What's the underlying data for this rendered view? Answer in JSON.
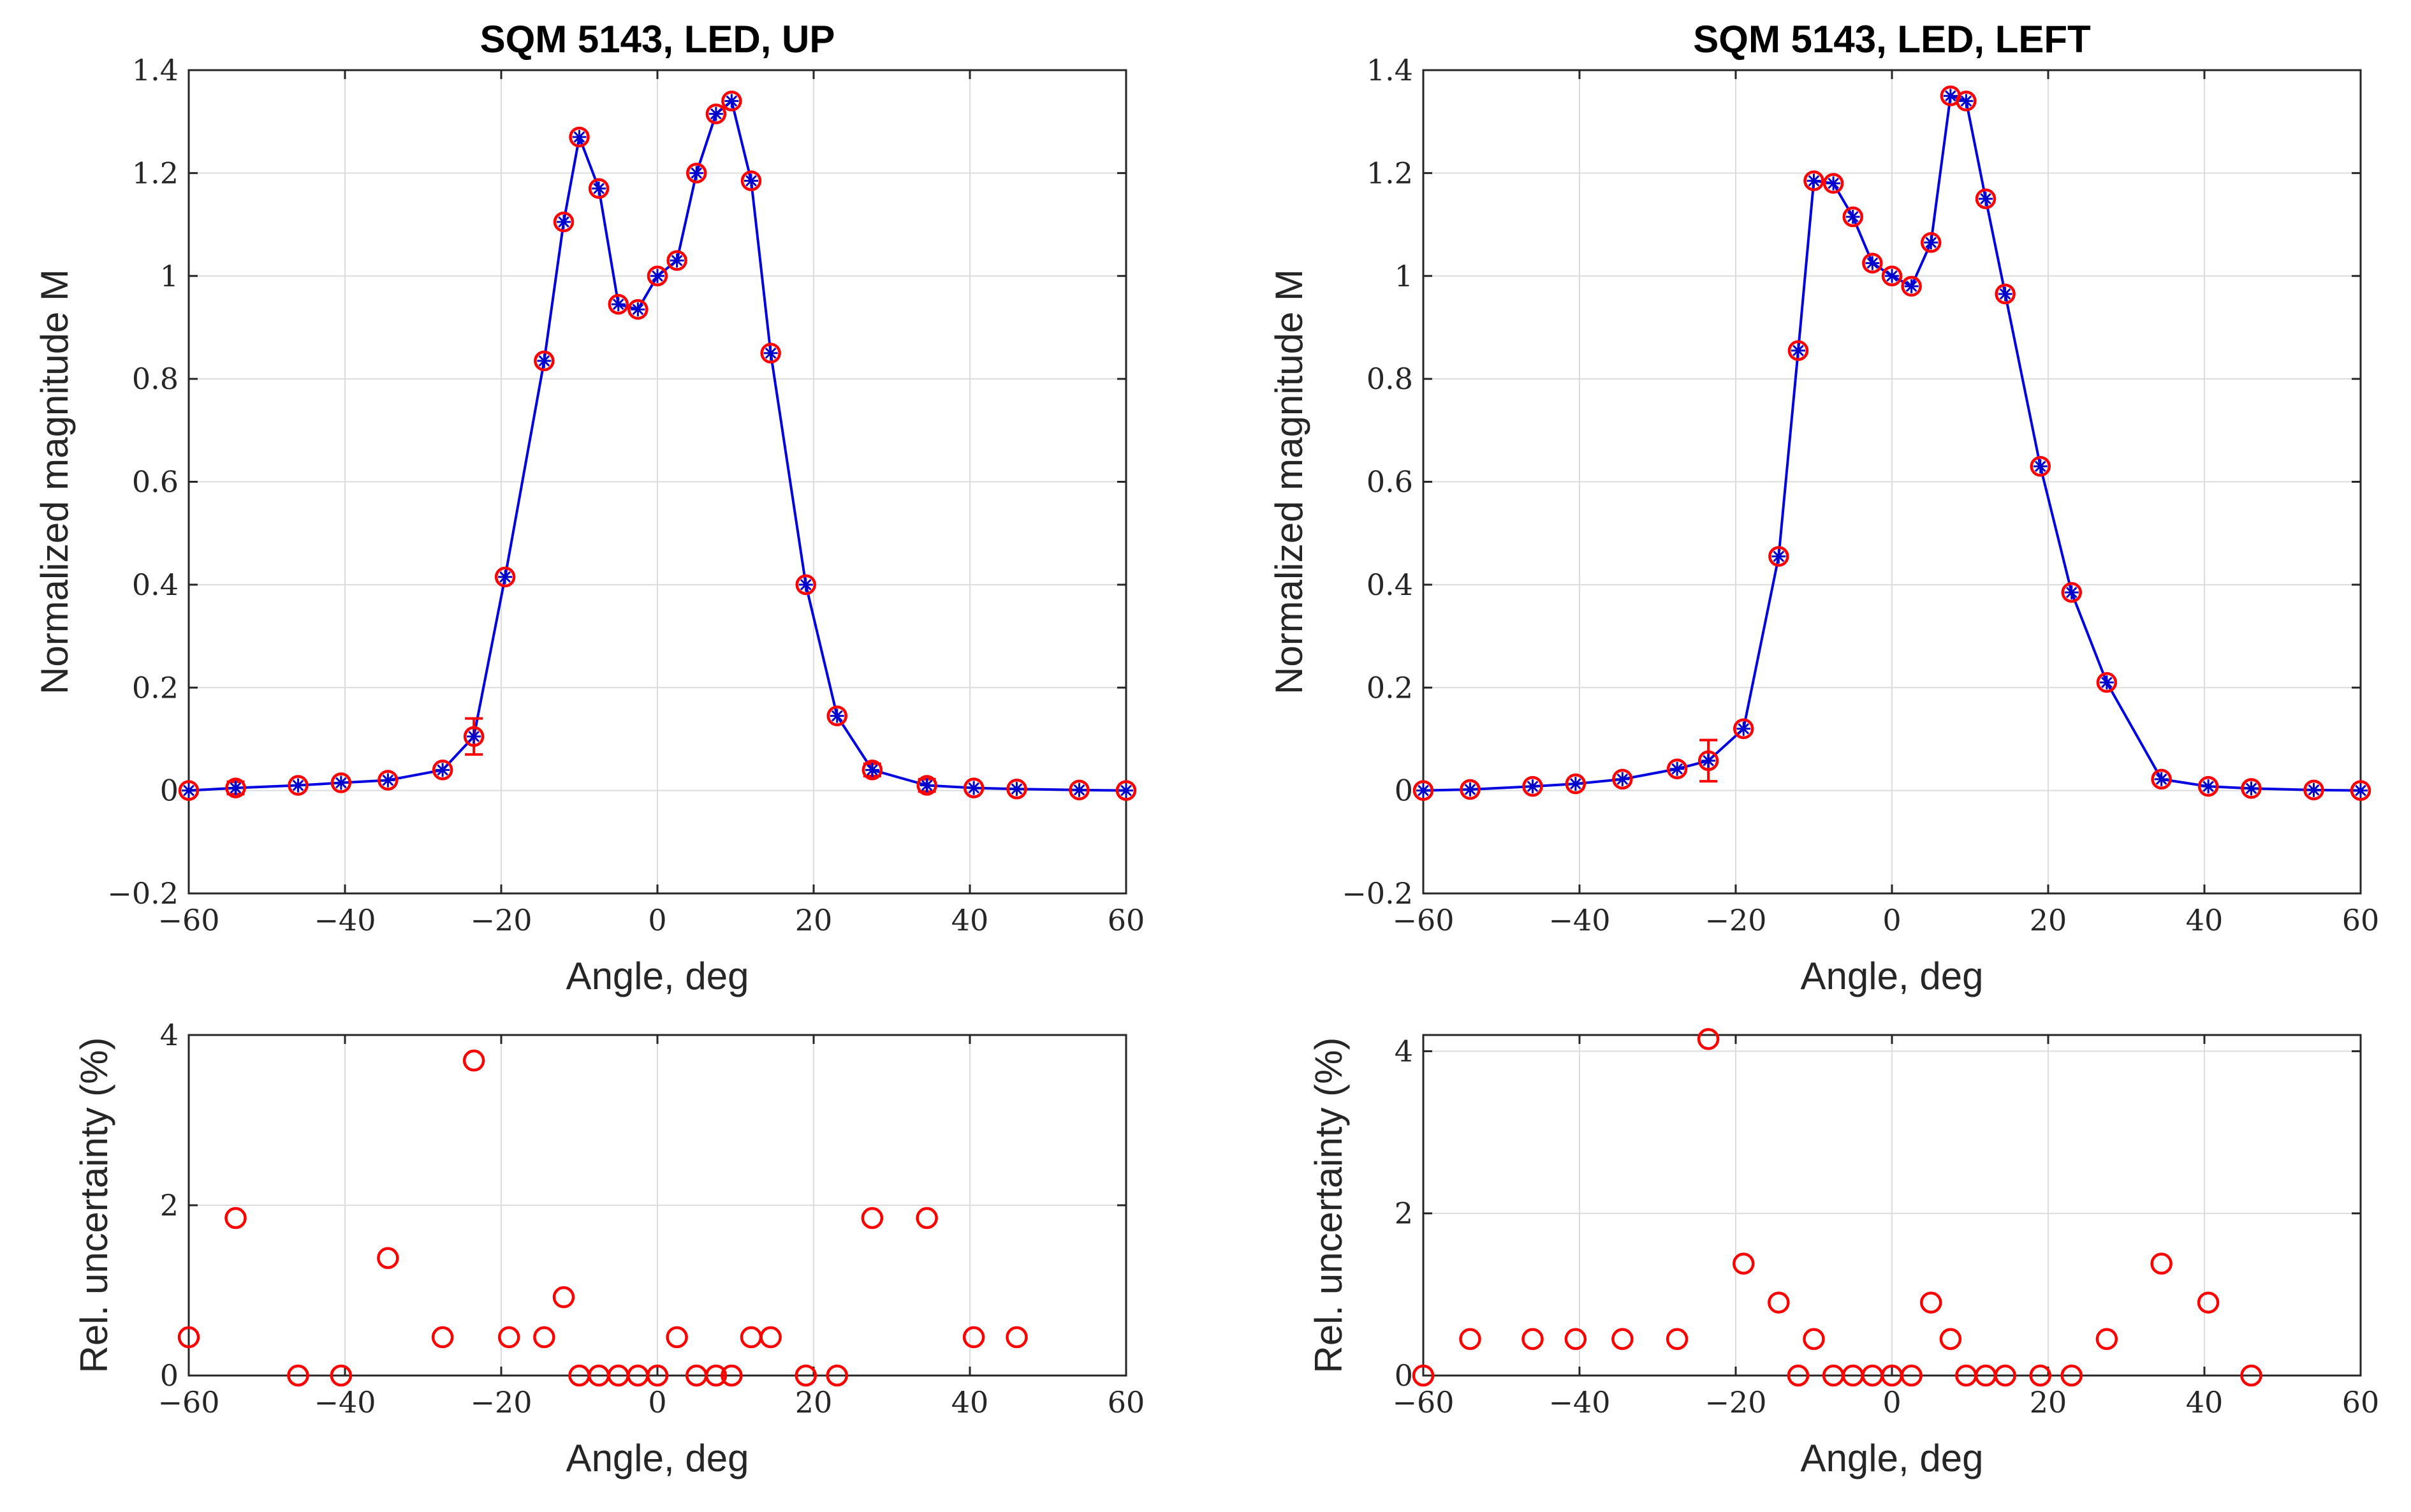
{
  "chart_data": [
    {
      "id": "up-magnitude",
      "type": "line",
      "title": "SQM 5143, LED, UP",
      "xlabel": "Angle, deg",
      "ylabel": "Normalized magnitude M",
      "xlim": [
        -60,
        60
      ],
      "ylim": [
        -0.2,
        1.4
      ],
      "xticks": [
        "−60",
        "−40",
        "−20",
        "0",
        "20",
        "40",
        "60"
      ],
      "xtick_values": [
        -60,
        -40,
        -20,
        0,
        20,
        40,
        60
      ],
      "yticks": [
        "−0.2",
        "0",
        "0.2",
        "0.4",
        "0.6",
        "0.8",
        "1",
        "1.2",
        "1.4"
      ],
      "ytick_values": [
        -0.2,
        0,
        0.2,
        0.4,
        0.6,
        0.8,
        1,
        1.2,
        1.4
      ],
      "grid": true,
      "x": [
        -60,
        -54,
        -46,
        -40.5,
        -34.5,
        -27.5,
        -23.5,
        -19.5,
        -14.5,
        -12,
        -10,
        -7.5,
        -5,
        -2.5,
        0,
        2.5,
        5,
        7.5,
        9.5,
        12,
        14.5,
        19,
        23,
        27.5,
        34.5,
        40.5,
        46,
        54,
        60
      ],
      "values": [
        0.0,
        0.005,
        0.01,
        0.015,
        0.02,
        0.04,
        0.105,
        0.415,
        0.835,
        1.105,
        1.27,
        1.17,
        0.945,
        0.935,
        1.0,
        1.03,
        1.2,
        1.315,
        1.34,
        1.185,
        0.85,
        0.4,
        0.145,
        0.04,
        0.01,
        0.005,
        0.003,
        0.001,
        0.0
      ],
      "errors": [
        0.0,
        0.012,
        0.0,
        0.0,
        0.0,
        0.0,
        0.035,
        0.0,
        0.0,
        0.0,
        0.0,
        0.0,
        0.0,
        0.0,
        0.0,
        0.0,
        0.0,
        0.0,
        0.0,
        0.0,
        0.0,
        0.0,
        0.0,
        0.012,
        0.012,
        0.0,
        0.0,
        0.0,
        0.0
      ]
    },
    {
      "id": "up-uncertainty",
      "type": "scatter",
      "xlabel": "Angle, deg",
      "ylabel": "Rel. uncertainty (%)",
      "xlim": [
        -60,
        60
      ],
      "ylim": [
        0,
        4
      ],
      "xticks": [
        "−60",
        "−40",
        "−20",
        "0",
        "20",
        "40",
        "60"
      ],
      "xtick_values": [
        -60,
        -40,
        -20,
        0,
        20,
        40,
        60
      ],
      "yticks": [
        "0",
        "2",
        "4"
      ],
      "ytick_values": [
        0,
        2,
        4
      ],
      "grid": true,
      "x": [
        -60,
        -54,
        -46,
        -40.5,
        -34.5,
        -27.5,
        -23.5,
        -19,
        -14.5,
        -12,
        -10,
        -7.5,
        -5,
        -2.5,
        0,
        2.5,
        5,
        7.5,
        9.5,
        12,
        14.5,
        19,
        23,
        27.5,
        34.5,
        40.5,
        46
      ],
      "values": [
        0.45,
        1.85,
        0.0,
        0.0,
        1.38,
        0.45,
        3.7,
        0.45,
        0.45,
        0.92,
        0.0,
        0.0,
        0.0,
        0.0,
        0.0,
        0.45,
        0.0,
        0.0,
        0.0,
        0.45,
        0.45,
        0.0,
        0.0,
        1.85,
        1.85,
        0.45,
        0.45
      ]
    },
    {
      "id": "left-magnitude",
      "type": "line",
      "title": "SQM 5143, LED, LEFT",
      "xlabel": "Angle, deg",
      "ylabel": "Normalized magnitude M",
      "xlim": [
        -60,
        60
      ],
      "ylim": [
        -0.2,
        1.4
      ],
      "xticks": [
        "−60",
        "−40",
        "−20",
        "0",
        "20",
        "40",
        "60"
      ],
      "xtick_values": [
        -60,
        -40,
        -20,
        0,
        20,
        40,
        60
      ],
      "yticks": [
        "−0.2",
        "0",
        "0.2",
        "0.4",
        "0.6",
        "0.8",
        "1",
        "1.2",
        "1.4"
      ],
      "ytick_values": [
        -0.2,
        0,
        0.2,
        0.4,
        0.6,
        0.8,
        1,
        1.2,
        1.4
      ],
      "grid": true,
      "x": [
        -60,
        -54,
        -46,
        -40.5,
        -34.5,
        -27.5,
        -23.5,
        -19,
        -14.5,
        -12,
        -10,
        -7.5,
        -5,
        -2.5,
        0,
        2.5,
        5,
        7.5,
        9.5,
        12,
        14.5,
        19,
        23,
        27.5,
        34.5,
        40.5,
        46,
        54,
        60
      ],
      "values": [
        0.0,
        0.002,
        0.008,
        0.013,
        0.022,
        0.042,
        0.058,
        0.12,
        0.455,
        0.855,
        1.185,
        1.18,
        1.115,
        1.025,
        1.0,
        0.98,
        1.065,
        1.35,
        1.34,
        1.15,
        0.965,
        0.63,
        0.385,
        0.21,
        0.022,
        0.008,
        0.004,
        0.001,
        0.0
      ],
      "errors": [
        0.0,
        0.0,
        0.0,
        0.0,
        0.0,
        0.0,
        0.04,
        0.0,
        0.0,
        0.0,
        0.0,
        0.0,
        0.0,
        0.0,
        0.0,
        0.0,
        0.0,
        0.0,
        0.0,
        0.0,
        0.0,
        0.0,
        0.0,
        0.0,
        0.0,
        0.0,
        0.0,
        0.0,
        0.0
      ]
    },
    {
      "id": "left-uncertainty",
      "type": "scatter",
      "xlabel": "Angle, deg",
      "ylabel": "Rel. uncertainty (%)",
      "xlim": [
        -60,
        60
      ],
      "ylim": [
        0,
        4.2
      ],
      "xticks": [
        "−60",
        "−40",
        "−20",
        "0",
        "20",
        "40",
        "60"
      ],
      "xtick_values": [
        -60,
        -40,
        -20,
        0,
        20,
        40,
        60
      ],
      "yticks": [
        "0",
        "2",
        "4"
      ],
      "ytick_values": [
        0,
        2,
        4
      ],
      "grid": true,
      "x": [
        -60,
        -54,
        -46,
        -40.5,
        -34.5,
        -27.5,
        -23.5,
        -19,
        -14.5,
        -12,
        -10,
        -7.5,
        -5,
        -2.5,
        0,
        2.5,
        5,
        7.5,
        9.5,
        12,
        14.5,
        19,
        23,
        27.5,
        34.5,
        40.5,
        46
      ],
      "values": [
        0.0,
        0.45,
        0.45,
        0.45,
        0.45,
        0.45,
        4.15,
        1.38,
        0.9,
        0.0,
        0.45,
        0.0,
        0.0,
        0.0,
        0.0,
        0.0,
        0.9,
        0.45,
        0.0,
        0.0,
        0.0,
        0.0,
        0.0,
        0.45,
        1.38,
        0.9,
        0.0
      ]
    }
  ]
}
